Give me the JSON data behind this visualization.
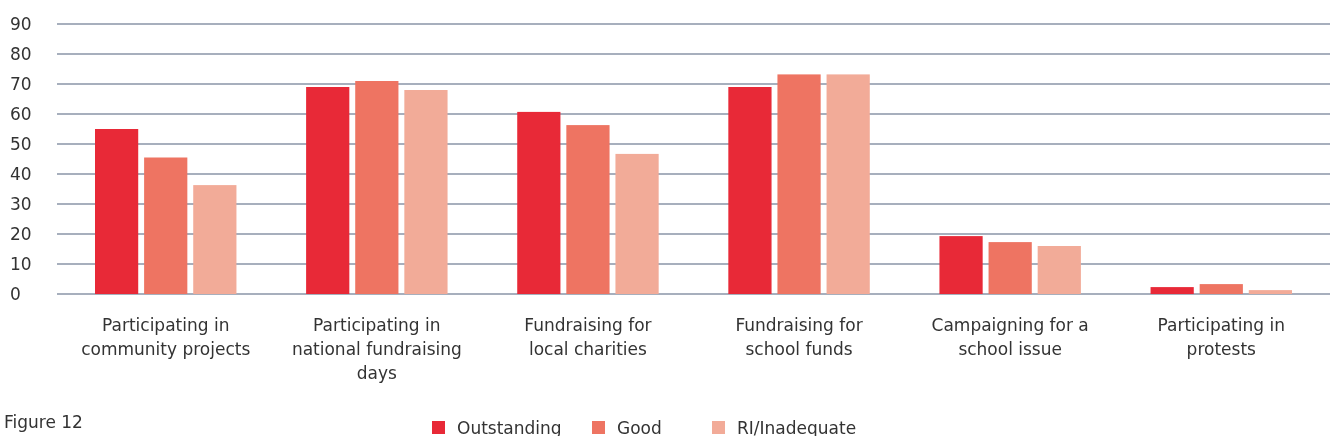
{
  "chart_data": {
    "type": "bar",
    "categories": [
      "Participating in community projects",
      "Participating in national fundraising days",
      "Fundraising for local charities",
      "Fundraising for school funds",
      "Campaigning for a school issue",
      "Participating in protests"
    ],
    "series": [
      {
        "name": "Outstanding",
        "color": "#e82937",
        "values": [
          55,
          69,
          60.7,
          69,
          19.3,
          2.3
        ]
      },
      {
        "name": "Good",
        "color": "#ee7462",
        "values": [
          45.5,
          71,
          56.3,
          73.2,
          17.3,
          3.3
        ]
      },
      {
        "name": "RI/Inadequate",
        "color": "#f2ab98",
        "values": [
          36.3,
          68,
          46.7,
          73.2,
          16,
          1.3
        ]
      }
    ],
    "ylim": [
      0,
      90
    ],
    "yticks": [
      0,
      10,
      20,
      30,
      40,
      50,
      60,
      70,
      80,
      90
    ],
    "grid": "y",
    "legend": "bottom",
    "annotations": [
      "Figure 12"
    ]
  }
}
